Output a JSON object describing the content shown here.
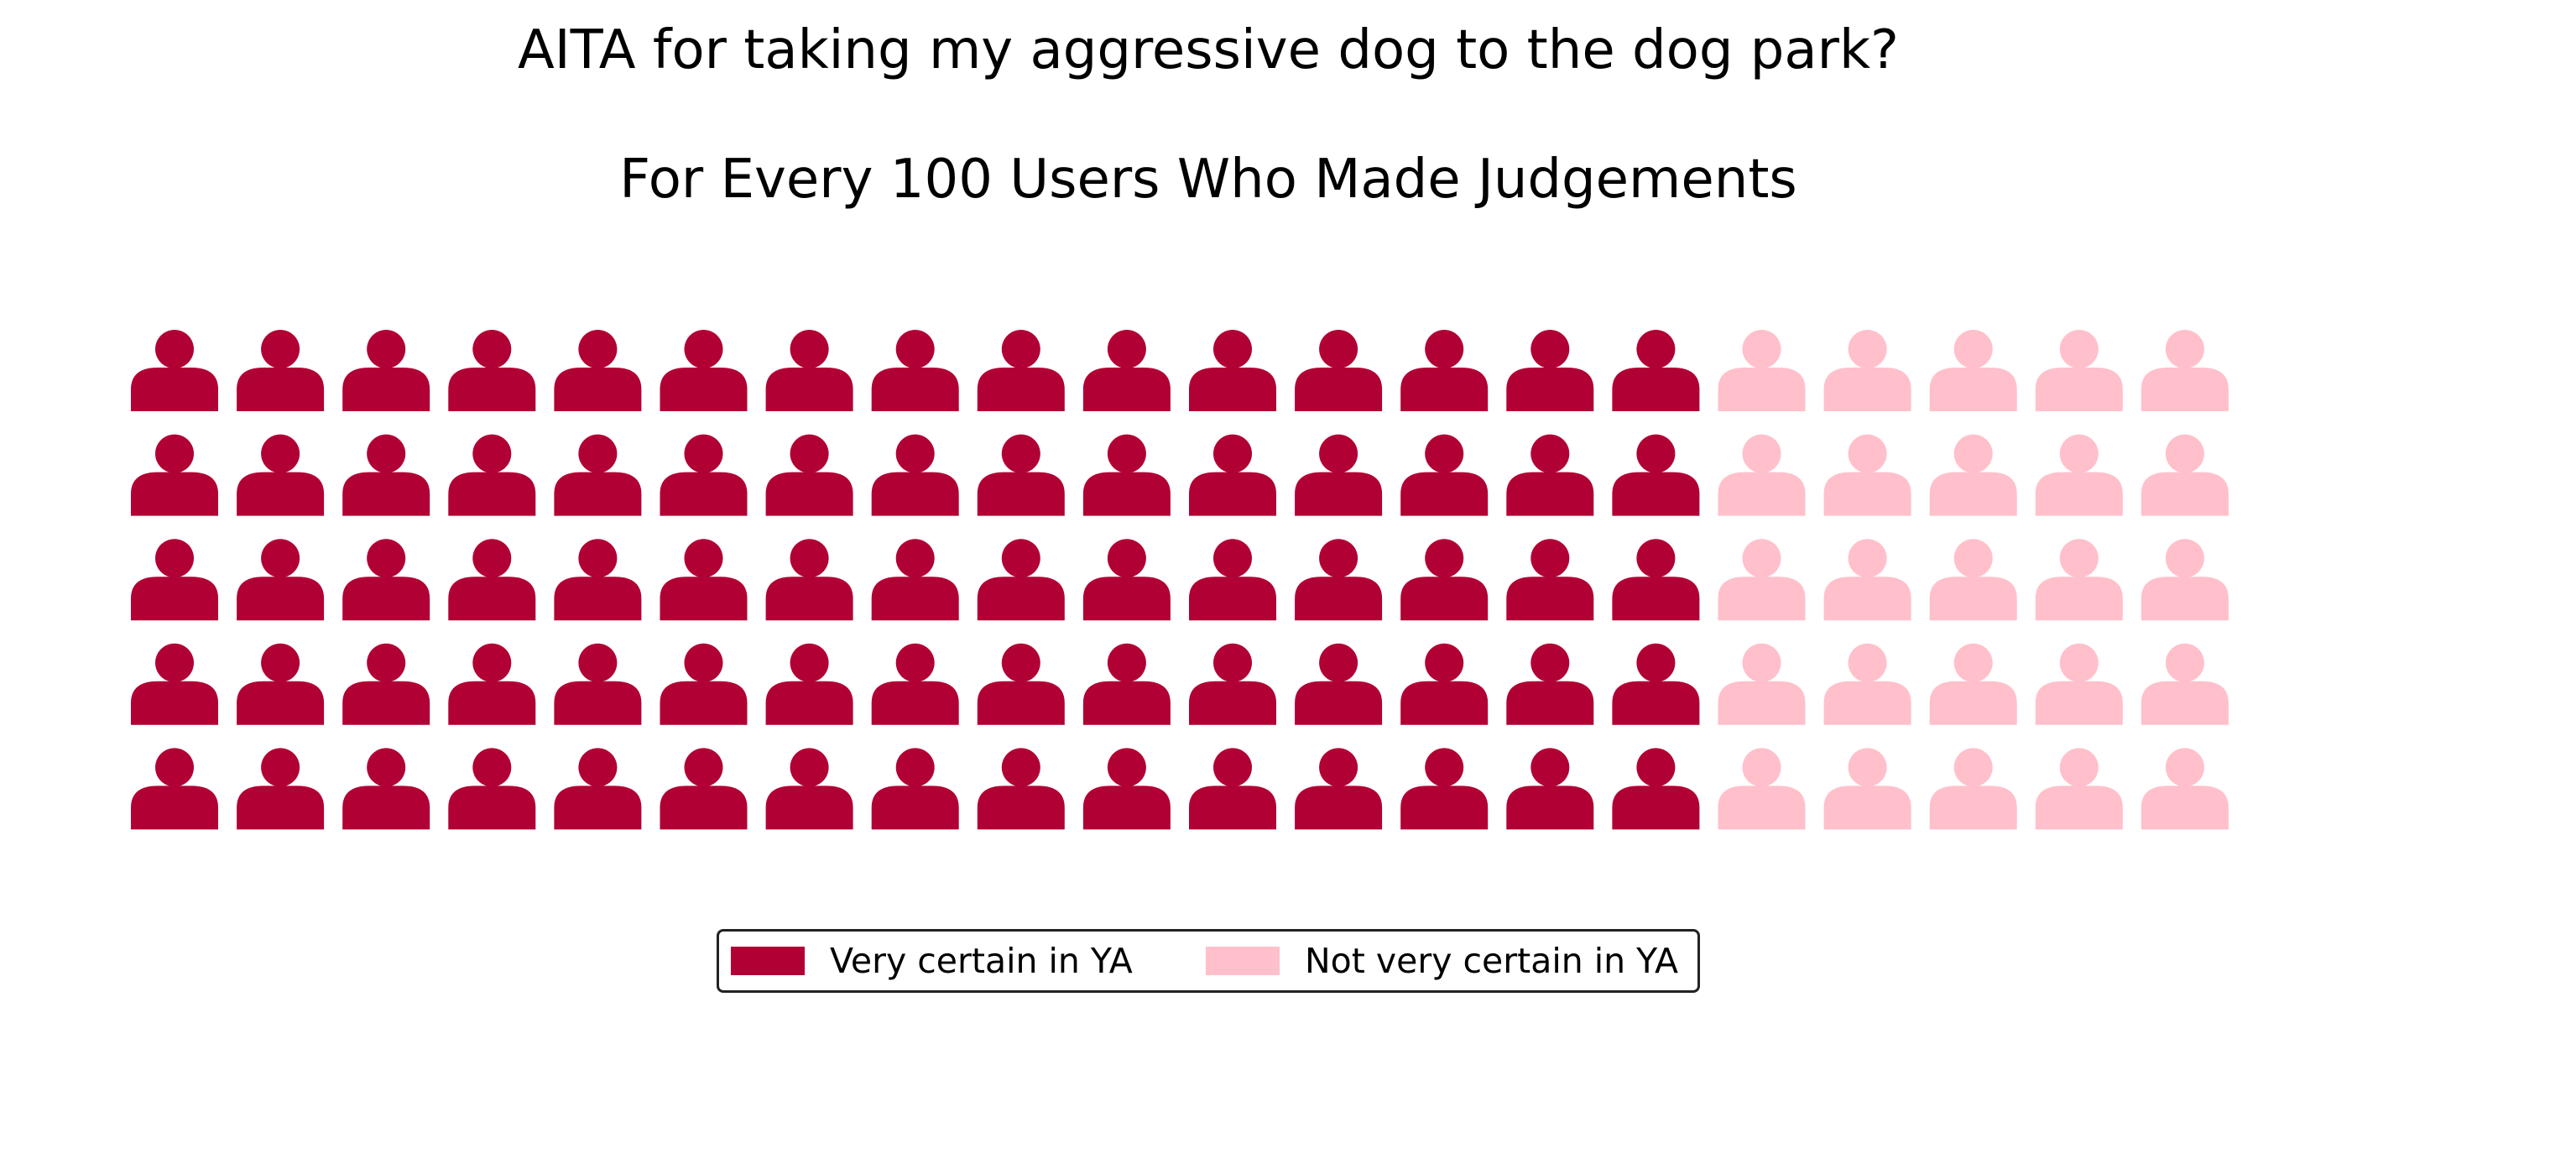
{
  "chart_data": {
    "type": "waffle",
    "title": "AITA for taking my aggressive dog to the dog park?",
    "subtitle": "For Every 100 Users Who Made Judgements",
    "grid": {
      "rows": 5,
      "columns": 20
    },
    "total": 100,
    "icon": "person-icon",
    "series": [
      {
        "name": "Very certain in YA",
        "value": 75,
        "color": "#B10034"
      },
      {
        "name": "Not very certain in YA",
        "value": 25,
        "color": "#FFC0CB"
      }
    ],
    "legend_position": "bottom-center"
  }
}
